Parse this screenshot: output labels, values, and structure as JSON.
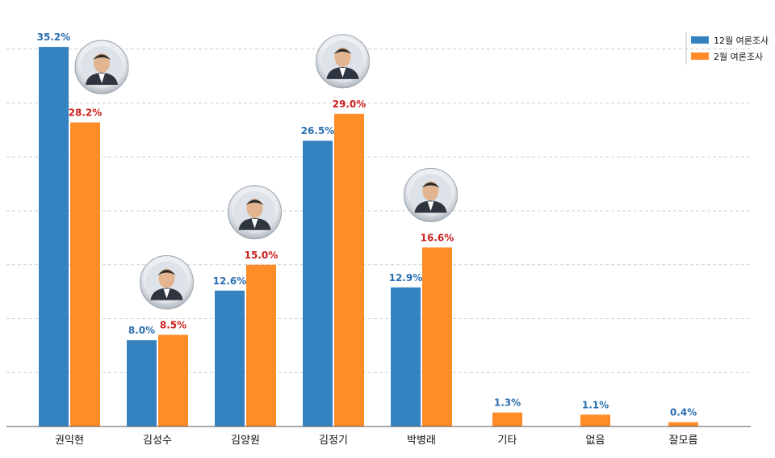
{
  "chart_data": {
    "type": "bar",
    "categories": [
      "권익현",
      "김성수",
      "김양원",
      "김정기",
      "박병래",
      "기타",
      "없음",
      "잘모름"
    ],
    "series": [
      {
        "name": "12월 여론조사",
        "color": "#3582c0",
        "label_color": "#2a6fb0",
        "values": [
          35.2,
          8.0,
          12.6,
          26.5,
          12.9,
          null,
          null,
          null
        ],
        "labels": [
          "35.2%",
          "8.0%",
          "12.6%",
          "26.5%",
          "12.9%",
          "",
          "",
          ""
        ]
      },
      {
        "name": "2월 여론조사",
        "color": "#ff8c26",
        "label_color": "#cc1f1f",
        "values": [
          28.2,
          8.5,
          15.0,
          29.0,
          16.6,
          1.3,
          1.1,
          0.4
        ],
        "labels": [
          "28.2%",
          "8.5%",
          "15.0%",
          "29.0%",
          "16.6%",
          "1.3%",
          "1.1%",
          "0.4%"
        ]
      }
    ],
    "others_label_color": "#2a6fb0",
    "photo_icons": [
      "person-photo",
      "person-photo",
      "person-photo",
      "person-photo",
      "person-photo"
    ],
    "ylim": [
      0,
      40
    ],
    "grid": true,
    "legend_position": "top-right",
    "title": "",
    "xlabel": "",
    "ylabel": ""
  }
}
